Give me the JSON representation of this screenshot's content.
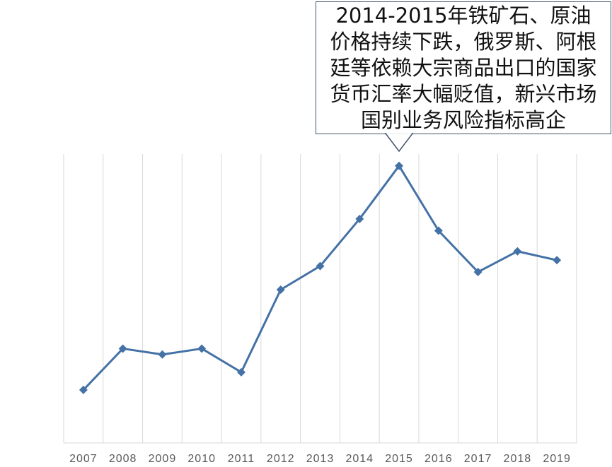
{
  "chart_data": {
    "type": "line",
    "categories": [
      "2007",
      "2008",
      "2009",
      "2010",
      "2011",
      "2012",
      "2013",
      "2014",
      "2015",
      "2016",
      "2017",
      "2018",
      "2019"
    ],
    "series": [
      {
        "values": [
          7,
          14,
          13,
          14,
          10,
          24,
          28,
          36,
          45,
          34,
          27,
          30.5,
          29
        ],
        "color": "#4472a6"
      }
    ],
    "ylim": [
      -2,
      47
    ],
    "y_axis_visible": false,
    "grid": "vertical",
    "annotation": {
      "category": "2015",
      "text": "2014-2015年铁矿石、原油价格持续下跌，俄罗斯、阿根廷等依赖大宗商品出口的国家货币汇率大幅贬值，新兴市场国别业务风险指标高企"
    }
  }
}
